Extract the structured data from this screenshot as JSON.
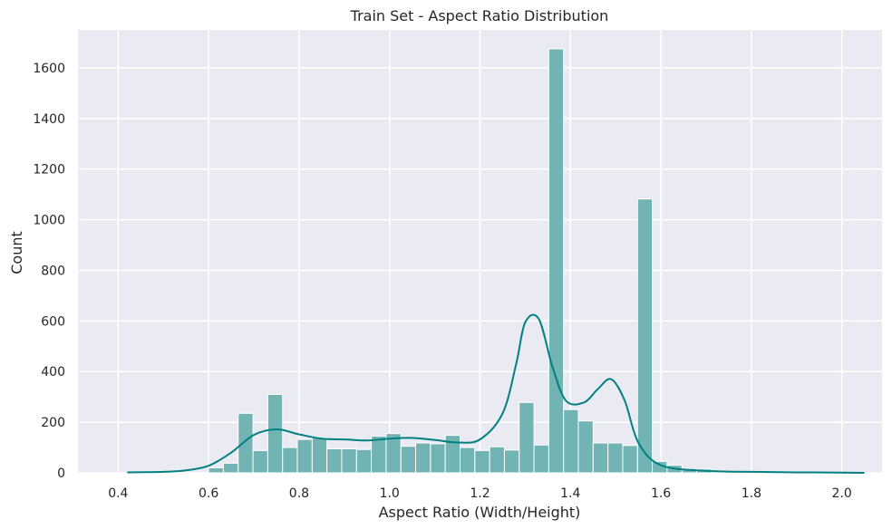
{
  "chart_data": {
    "type": "bar",
    "subtype": "histogram-with-kde",
    "title": "Train Set - Aspect Ratio Distribution",
    "xlabel": "Aspect Ratio (Width/Height)",
    "ylabel": "Count",
    "xlim": [
      0.4,
      2.0
    ],
    "ylim": [
      0,
      1750
    ],
    "xticks": [
      "0.4",
      "0.6",
      "0.8",
      "1.0",
      "1.2",
      "1.4",
      "1.6",
      "1.8",
      "2.0"
    ],
    "yticks": [
      "0",
      "200",
      "400",
      "600",
      "800",
      "1000",
      "1200",
      "1400",
      "1600"
    ],
    "grid": true,
    "colors": {
      "background": "#eaeaf2",
      "grid": "#ffffff",
      "bar_fill": "#72b3b4",
      "bar_edge": "#ffffff",
      "kde_line": "#008080"
    },
    "bins": {
      "start": 0.6,
      "width": 0.0327,
      "values": [
        20,
        38,
        235,
        88,
        310,
        100,
        132,
        138,
        95,
        95,
        92,
        145,
        155,
        105,
        118,
        115,
        148,
        100,
        88,
        103,
        90,
        278,
        110,
        1675,
        250,
        205,
        118,
        118,
        108,
        1082,
        45,
        30,
        12,
        15
      ]
    },
    "kde": {
      "x": [
        0.42,
        0.5,
        0.55,
        0.6,
        0.65,
        0.7,
        0.75,
        0.8,
        0.85,
        0.9,
        0.95,
        1.0,
        1.05,
        1.1,
        1.15,
        1.2,
        1.25,
        1.28,
        1.3,
        1.33,
        1.36,
        1.39,
        1.43,
        1.46,
        1.49,
        1.52,
        1.55,
        1.6,
        1.7,
        1.8,
        1.9,
        2.0,
        2.05
      ],
      "y": [
        2,
        4,
        10,
        28,
        80,
        150,
        172,
        152,
        135,
        132,
        128,
        135,
        138,
        130,
        120,
        132,
        235,
        430,
        595,
        608,
        420,
        285,
        278,
        330,
        370,
        285,
        120,
        30,
        8,
        4,
        2,
        1,
        0
      ]
    }
  }
}
